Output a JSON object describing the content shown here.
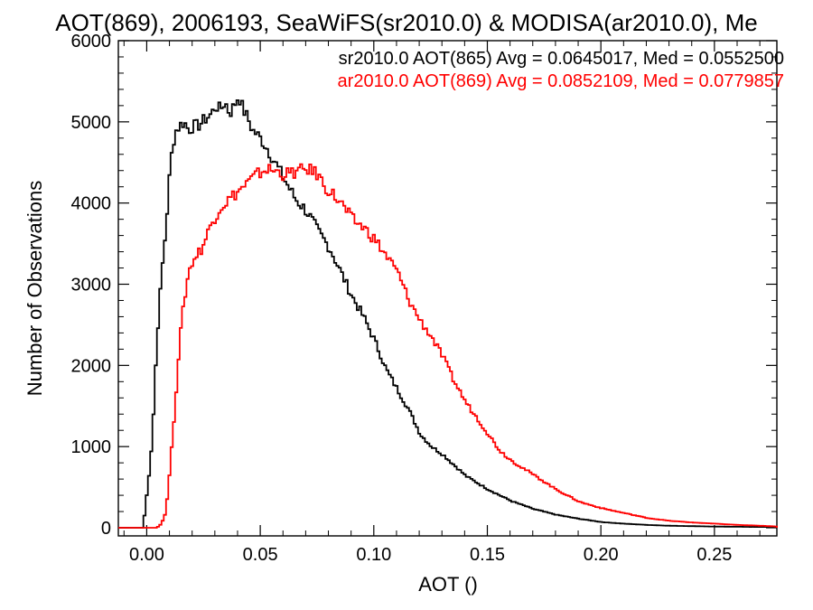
{
  "chart_data": {
    "type": "line",
    "title": "AOT(869), 2006193, SeaWiFS(sr2010.0) & MODISA(ar2010.0), Me",
    "xlabel": "AOT ()",
    "ylabel": "Number of Observations",
    "xlim": [
      -0.0125,
      0.2775
    ],
    "ylim": [
      -100,
      6000
    ],
    "x_ticks": [
      0.0,
      0.05,
      0.1,
      0.15,
      0.2,
      0.25
    ],
    "x_tick_labels": [
      "0.00",
      "0.05",
      "0.10",
      "0.15",
      "0.20",
      "0.25"
    ],
    "y_ticks": [
      0,
      1000,
      2000,
      3000,
      4000,
      5000,
      6000
    ],
    "y_tick_labels": [
      "0",
      "1000",
      "2000",
      "3000",
      "4000",
      "5000",
      "6000"
    ],
    "legend_placement": "top-right",
    "series": [
      {
        "name": "sr2010.0 AOT(865) Avg = 0.0645017, Med = 0.0552500",
        "color": "#000000",
        "x": [
          -0.0125,
          -0.002,
          -0.001,
          0.0,
          0.002,
          0.004,
          0.006,
          0.008,
          0.01,
          0.012,
          0.014,
          0.016,
          0.018,
          0.02,
          0.022,
          0.024,
          0.026,
          0.028,
          0.03,
          0.032,
          0.034,
          0.036,
          0.038,
          0.04,
          0.042,
          0.044,
          0.046,
          0.048,
          0.05,
          0.052,
          0.055,
          0.058,
          0.06,
          0.065,
          0.07,
          0.075,
          0.08,
          0.085,
          0.09,
          0.095,
          0.1,
          0.105,
          0.11,
          0.115,
          0.12,
          0.125,
          0.13,
          0.14,
          0.15,
          0.16,
          0.17,
          0.18,
          0.19,
          0.2,
          0.21,
          0.22,
          0.23,
          0.24,
          0.25,
          0.26,
          0.27,
          0.2775
        ],
        "y": [
          0,
          0,
          300,
          500,
          1100,
          2300,
          3100,
          3700,
          4500,
          4880,
          4950,
          5000,
          4900,
          4950,
          4950,
          5000,
          5050,
          5100,
          5200,
          5150,
          5250,
          5100,
          5200,
          5320,
          5150,
          5050,
          4900,
          4850,
          4780,
          4700,
          4550,
          4400,
          4300,
          4050,
          3900,
          3650,
          3450,
          3150,
          2850,
          2600,
          2300,
          1950,
          1700,
          1450,
          1150,
          1000,
          900,
          640,
          470,
          330,
          230,
          160,
          110,
          70,
          50,
          35,
          25,
          20,
          15,
          12,
          10,
          10
        ]
      },
      {
        "name": "ar2010.0 AOT(869) Avg = 0.0852109, Med = 0.0779857",
        "color": "#ff0000",
        "x": [
          -0.0125,
          0.004,
          0.006,
          0.008,
          0.01,
          0.012,
          0.014,
          0.016,
          0.018,
          0.02,
          0.022,
          0.024,
          0.026,
          0.028,
          0.03,
          0.032,
          0.034,
          0.036,
          0.038,
          0.04,
          0.042,
          0.044,
          0.046,
          0.048,
          0.05,
          0.052,
          0.055,
          0.058,
          0.06,
          0.065,
          0.07,
          0.072,
          0.075,
          0.078,
          0.08,
          0.085,
          0.09,
          0.095,
          0.1,
          0.105,
          0.11,
          0.115,
          0.12,
          0.125,
          0.13,
          0.135,
          0.14,
          0.145,
          0.15,
          0.155,
          0.16,
          0.17,
          0.18,
          0.19,
          0.2,
          0.21,
          0.22,
          0.23,
          0.24,
          0.25,
          0.26,
          0.27,
          0.2775
        ],
        "y": [
          0,
          0,
          50,
          200,
          800,
          1500,
          2300,
          2800,
          3150,
          3300,
          3380,
          3450,
          3600,
          3750,
          3850,
          3950,
          4000,
          4050,
          4100,
          4150,
          4200,
          4250,
          4300,
          4350,
          4380,
          4420,
          4400,
          4380,
          4350,
          4380,
          4420,
          4400,
          4350,
          4200,
          4150,
          4000,
          3800,
          3700,
          3550,
          3350,
          3150,
          2800,
          2550,
          2350,
          2100,
          1800,
          1550,
          1350,
          1150,
          950,
          830,
          650,
          470,
          320,
          240,
          180,
          120,
          85,
          65,
          50,
          35,
          25,
          15
        ]
      }
    ]
  }
}
